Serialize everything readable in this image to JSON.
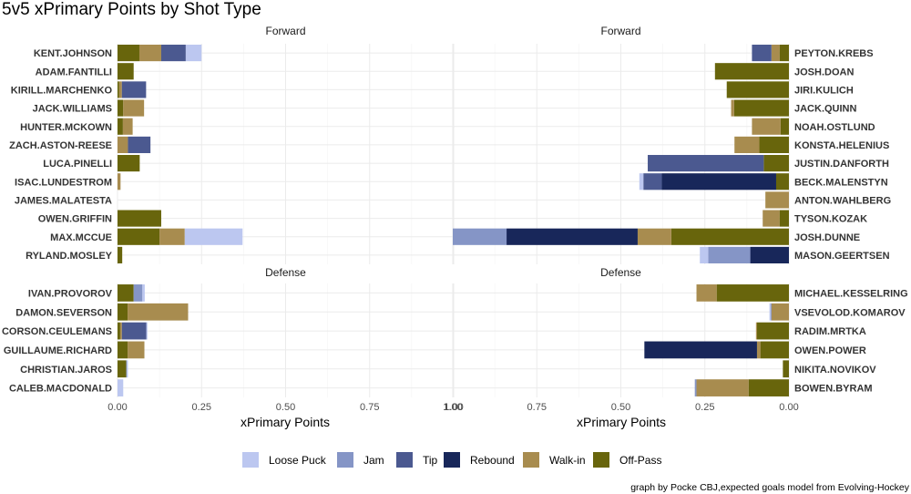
{
  "chart_data": {
    "type": "bar",
    "orientation": "horizontal-stacked",
    "title": "5v5 xPrimary Points by Shot Type",
    "caption": "graph by Pocke CBJ,expected goals model from Evolving-Hockey",
    "xlabel": "xPrimary Points",
    "xlim": [
      0,
      1
    ],
    "x_ticks": [
      "0.00",
      "0.25",
      "0.50",
      "0.75",
      "1.00"
    ],
    "x_ticks_reversed": [
      "1.00",
      "0.75",
      "0.50",
      "0.25",
      "0.00"
    ],
    "series_order": [
      "Loose Puck",
      "Jam",
      "Tip",
      "Rebound",
      "Walk-in",
      "Off-Pass"
    ],
    "colors": {
      "Loose Puck": "#bcc7f0",
      "Jam": "#8595c6",
      "Tip": "#4b5990",
      "Rebound": "#18275a",
      "Walk-in": "#a88c4f",
      "Off-Pass": "#68650c"
    },
    "legend": {
      "position": "bottom"
    },
    "panels": [
      {
        "strip": "Forward",
        "side": "left",
        "players": [
          {
            "name": "KENT.JOHNSON",
            "values": {
              "Off-Pass": 0.065,
              "Walk-in": 0.065,
              "Tip": 0.073,
              "Loose Puck": 0.047
            }
          },
          {
            "name": "ADAM.FANTILLI",
            "values": {
              "Off-Pass": 0.048
            }
          },
          {
            "name": "KIRILL.MARCHENKO",
            "values": {
              "Off-Pass": 0.005,
              "Walk-in": 0.008,
              "Tip": 0.072
            }
          },
          {
            "name": "JACK.WILLIAMS",
            "values": {
              "Off-Pass": 0.017,
              "Walk-in": 0.062
            }
          },
          {
            "name": "HUNTER.MCKOWN",
            "values": {
              "Off-Pass": 0.016,
              "Walk-in": 0.029
            }
          },
          {
            "name": "ZACH.ASTON-REESE",
            "values": {
              "Walk-in": 0.031,
              "Tip": 0.067
            }
          },
          {
            "name": "LUCA.PINELLI",
            "values": {
              "Off-Pass": 0.066
            }
          },
          {
            "name": "ISAC.LUNDESTROM",
            "values": {
              "Walk-in": 0.009
            }
          },
          {
            "name": "JAMES.MALATESTA",
            "values": {}
          },
          {
            "name": "OWEN.GRIFFIN",
            "values": {
              "Off-Pass": 0.13
            }
          },
          {
            "name": "MAX.MCCUE",
            "values": {
              "Off-Pass": 0.125,
              "Walk-in": 0.075,
              "Loose Puck": 0.172
            }
          },
          {
            "name": "RYLAND.MOSLEY",
            "values": {
              "Off-Pass": 0.014
            }
          }
        ]
      },
      {
        "strip": "Forward",
        "side": "right",
        "players": [
          {
            "name": "PEYTON.KREBS",
            "values": {
              "Off-Pass": 0.028,
              "Walk-in": 0.024,
              "Tip": 0.058
            }
          },
          {
            "name": "JOSH.DOAN",
            "values": {
              "Off-Pass": 0.22
            }
          },
          {
            "name": "JIRI.KULICH",
            "values": {
              "Off-Pass": 0.185
            }
          },
          {
            "name": "JACK.QUINN",
            "values": {
              "Off-Pass": 0.163,
              "Walk-in": 0.009
            }
          },
          {
            "name": "NOAH.OSTLUND",
            "values": {
              "Off-Pass": 0.025,
              "Walk-in": 0.085
            }
          },
          {
            "name": "KONSTA.HELENIUS",
            "values": {
              "Off-Pass": 0.088,
              "Walk-in": 0.074
            }
          },
          {
            "name": "JUSTIN.DANFORTH",
            "values": {
              "Off-Pass": 0.075,
              "Tip": 0.345
            }
          },
          {
            "name": "BECK.MALENSTYN",
            "values": {
              "Off-Pass": 0.038,
              "Rebound": 0.34,
              "Tip": 0.055,
              "Loose Puck": 0.012
            }
          },
          {
            "name": "ANTON.WAHLBERG",
            "values": {
              "Walk-in": 0.07
            }
          },
          {
            "name": "TYSON.KOZAK",
            "values": {
              "Off-Pass": 0.028,
              "Walk-in": 0.05
            }
          },
          {
            "name": "JOSH.DUNNE",
            "values": {
              "Off-Pass": 0.35,
              "Walk-in": 0.1,
              "Rebound": 0.39,
              "Jam": 0.16
            }
          },
          {
            "name": "MASON.GEERTSEN",
            "values": {
              "Rebound": 0.115,
              "Jam": 0.125,
              "Loose Puck": 0.025
            }
          }
        ]
      },
      {
        "strip": "Defense",
        "side": "left",
        "players": [
          {
            "name": "IVAN.PROVOROV",
            "values": {
              "Off-Pass": 0.048,
              "Jam": 0.026,
              "Loose Puck": 0.007
            }
          },
          {
            "name": "DAMON.SEVERSON",
            "values": {
              "Off-Pass": 0.03,
              "Walk-in": 0.18
            }
          },
          {
            "name": "CORSON.CEULEMANS",
            "values": {
              "Off-Pass": 0.008,
              "Walk-in": 0.005,
              "Tip": 0.073,
              "Loose Puck": 0.003
            }
          },
          {
            "name": "GUILLAUME.RICHARD",
            "values": {
              "Off-Pass": 0.03,
              "Walk-in": 0.05
            }
          },
          {
            "name": "CHRISTIAN.JAROS",
            "values": {
              "Off-Pass": 0.026,
              "Jam": 0.002,
              "Loose Puck": 0.003
            }
          },
          {
            "name": "CALEB.MACDONALD",
            "values": {
              "Loose Puck": 0.017
            }
          }
        ]
      },
      {
        "strip": "Defense",
        "side": "right",
        "players": [
          {
            "name": "MICHAEL.KESSELRING",
            "values": {
              "Off-Pass": 0.215,
              "Walk-in": 0.06
            }
          },
          {
            "name": "VSEVOLOD.KOMAROV",
            "values": {
              "Walk-in": 0.052,
              "Jam": 0.003,
              "Loose Puck": 0.003
            }
          },
          {
            "name": "RADIM.MRTKA",
            "values": {
              "Off-Pass": 0.095,
              "Walk-in": 0.003
            }
          },
          {
            "name": "OWEN.POWER",
            "values": {
              "Off-Pass": 0.085,
              "Walk-in": 0.01,
              "Rebound": 0.335
            }
          },
          {
            "name": "NIKITA.NOVIKOV",
            "values": {
              "Off-Pass": 0.018
            }
          },
          {
            "name": "BOWEN.BYRAM",
            "values": {
              "Off-Pass": 0.12,
              "Walk-in": 0.155,
              "Jam": 0.005
            }
          }
        ]
      }
    ]
  }
}
